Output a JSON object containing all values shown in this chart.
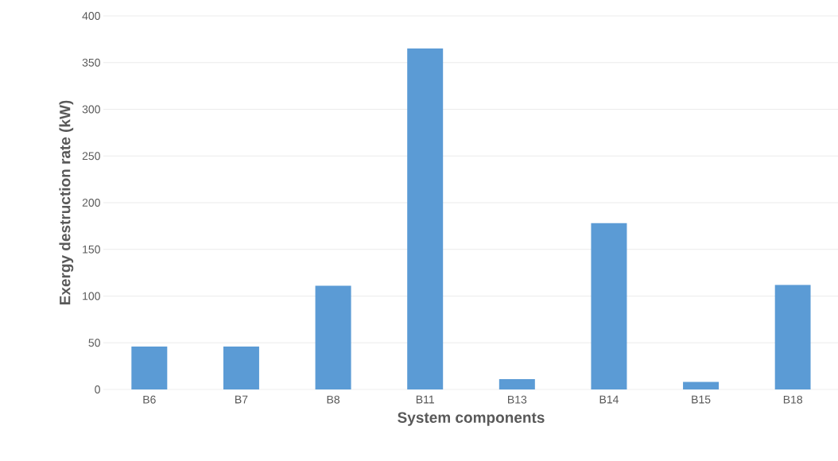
{
  "chart_data": {
    "type": "bar",
    "xlabel": "System components",
    "ylabel": "Exergy destruction rate (kW)",
    "categories": [
      "B6",
      "B7",
      "B8",
      "B11",
      "B13",
      "B14",
      "B15",
      "B18"
    ],
    "values": [
      46,
      46,
      111,
      365,
      11,
      178,
      8,
      112
    ],
    "color": "#5b9bd5",
    "ylim": [
      0,
      400
    ],
    "yticks": [
      0,
      50,
      100,
      150,
      200,
      250,
      300,
      350,
      400
    ],
    "grid": "y"
  }
}
